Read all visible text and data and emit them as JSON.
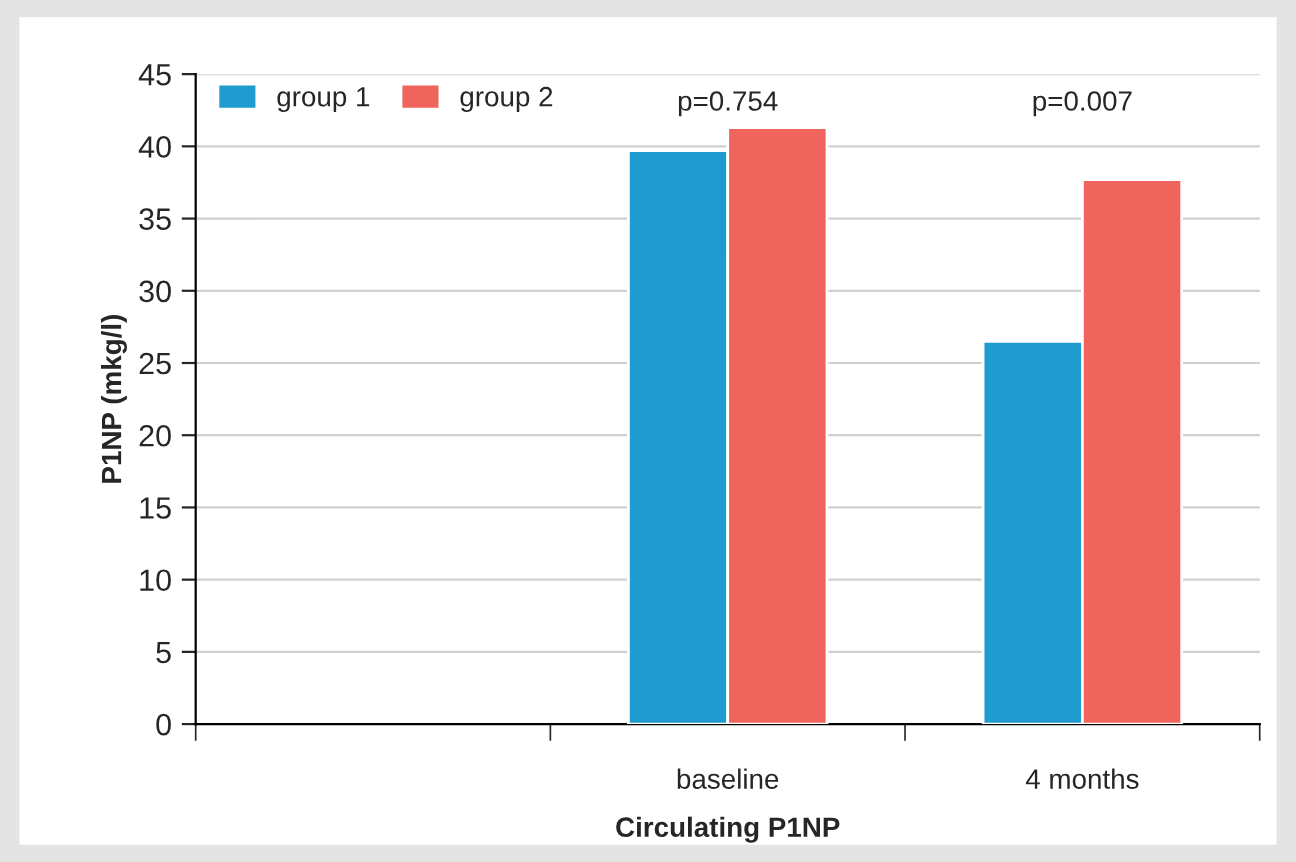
{
  "chart_data": {
    "type": "bar",
    "xlabel": "Circulating P1NP",
    "ylabel": "P1NP (mkg/l)",
    "categories": [
      null,
      "baseline",
      "4 months"
    ],
    "series": [
      {
        "name": "group 1",
        "color": "#1f9bcf",
        "values": [
          null,
          39.7,
          26.5
        ]
      },
      {
        "name": "group 2",
        "color": "#f0645e",
        "values": [
          null,
          41.3,
          37.7
        ]
      }
    ],
    "ylim": [
      0,
      45
    ],
    "yticks": [
      0,
      5,
      10,
      15,
      20,
      25,
      30,
      35,
      40,
      45
    ],
    "grid": "y",
    "legend": "top left",
    "annotations": [
      "p=0.754",
      "p=0.007"
    ]
  }
}
